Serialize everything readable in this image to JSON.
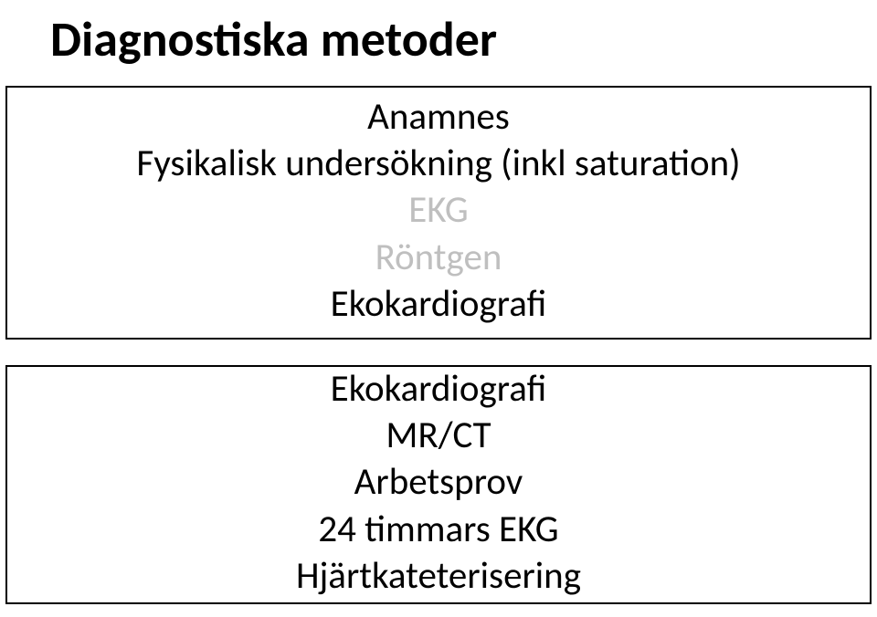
{
  "title": "Diagnostiska metoder",
  "colors": {
    "text": "#000000",
    "muted": "#bfbfbf",
    "background": "#ffffff",
    "border": "#000000"
  },
  "typography": {
    "title_fontsize": 54,
    "title_weight": 700,
    "body_fontsize": 41,
    "body_weight": 400,
    "font_family": "Calibri"
  },
  "boxes": [
    {
      "id": "box1",
      "items": [
        {
          "text": "Anamnes",
          "muted": false
        },
        {
          "text": "Fysikalisk undersökning (inkl saturation)",
          "muted": false
        },
        {
          "text": "EKG",
          "muted": true
        },
        {
          "text": "Röntgen",
          "muted": true
        },
        {
          "text": "Ekokardiografi",
          "muted": false
        }
      ]
    },
    {
      "id": "box2",
      "items": [
        {
          "text": "Ekokardiografi",
          "muted": false
        },
        {
          "text": "MR/CT",
          "muted": false
        },
        {
          "text": "Arbetsprov",
          "muted": false
        },
        {
          "text": "24 timmars EKG",
          "muted": false
        },
        {
          "text": "Hjärtkateterisering",
          "muted": false
        }
      ]
    }
  ]
}
